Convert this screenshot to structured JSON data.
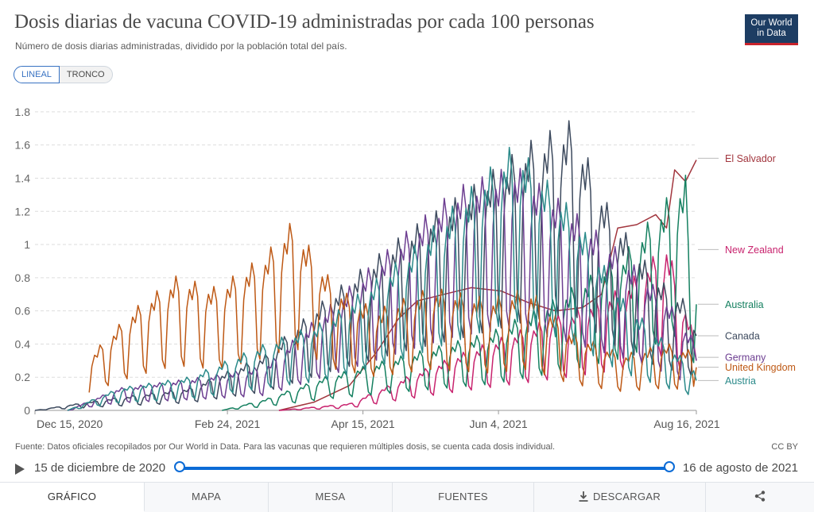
{
  "header": {
    "title": "Dosis diarias de vacuna COVID-19 administradas por cada 100 personas",
    "subtitle": "Número de dosis diarias administradas, dividido por la población total del país.",
    "logo_line1": "Our World",
    "logo_line2": "in Data"
  },
  "scale_toggle": {
    "linear": "LINEAL",
    "log": "TRONCO"
  },
  "footer": {
    "source": "Fuente: Datos oficiales recopilados por Our World in Data. Para las vacunas que requieren múltiples dosis, se cuenta cada dosis individual.",
    "license": "CC BY"
  },
  "timeline": {
    "start": "15 de diciembre de 2020",
    "end": "16 de agosto de 2021"
  },
  "tabs": {
    "chart": "GRÁFICO",
    "map": "MAPA",
    "table": "MESA",
    "sources": "FUENTES",
    "download": "DESCARGAR"
  },
  "chart_data": {
    "type": "line",
    "x_ticks": [
      "Dec 15, 2020",
      "Feb 24, 2021",
      "Apr 15, 2021",
      "Jun 4, 2021",
      "Aug 16, 2021"
    ],
    "y_ticks": [
      "0",
      "0.2",
      "0.4",
      "0.6",
      "0.8",
      "1",
      "1.2",
      "1.4",
      "1.6",
      "1.8"
    ],
    "ylim": [
      0,
      1.9
    ],
    "x_range": [
      "2020-12-15",
      "2021-08-16"
    ],
    "grid": "horizontal-dashed",
    "series": [
      {
        "name": "El Salvador",
        "color": "#a2363e",
        "label_y": 1.52,
        "pattern": "smooth",
        "points": [
          [
            "2021-03-15",
            0.0
          ],
          [
            "2021-03-28",
            0.05
          ],
          [
            "2021-04-10",
            0.15
          ],
          [
            "2021-04-20",
            0.35
          ],
          [
            "2021-04-28",
            0.55
          ],
          [
            "2021-05-05",
            0.66
          ],
          [
            "2021-05-15",
            0.7
          ],
          [
            "2021-05-25",
            0.74
          ],
          [
            "2021-06-05",
            0.72
          ],
          [
            "2021-06-15",
            0.65
          ],
          [
            "2021-06-25",
            0.6
          ],
          [
            "2021-07-05",
            0.62
          ],
          [
            "2021-07-12",
            0.7
          ],
          [
            "2021-07-18",
            1.1
          ],
          [
            "2021-07-25",
            1.12
          ],
          [
            "2021-08-01",
            1.18
          ],
          [
            "2021-08-05",
            1.1
          ],
          [
            "2021-08-08",
            1.45
          ],
          [
            "2021-08-12",
            1.38
          ],
          [
            "2021-08-16",
            1.51
          ]
        ]
      },
      {
        "name": "New Zealand",
        "color": "#c8236e",
        "label_y": 0.97,
        "pattern": "weekly",
        "points": [
          [
            "2021-03-15",
            0.0
          ],
          [
            "2021-04-10",
            0.03
          ],
          [
            "2021-05-01",
            0.15
          ],
          [
            "2021-05-20",
            0.25
          ],
          [
            "2021-06-10",
            0.35
          ],
          [
            "2021-07-01",
            0.45
          ],
          [
            "2021-07-20",
            0.55
          ],
          [
            "2021-08-05",
            0.75
          ],
          [
            "2021-08-16",
            0.3
          ]
        ]
      },
      {
        "name": "Australia",
        "color": "#158060",
        "label_y": 0.64,
        "pattern": "weekly",
        "points": [
          [
            "2021-02-22",
            0.0
          ],
          [
            "2021-03-10",
            0.05
          ],
          [
            "2021-04-01",
            0.15
          ],
          [
            "2021-05-01",
            0.25
          ],
          [
            "2021-06-01",
            0.35
          ],
          [
            "2021-06-25",
            0.5
          ],
          [
            "2021-07-20",
            0.7
          ],
          [
            "2021-08-05",
            0.95
          ],
          [
            "2021-08-12",
            1.05
          ],
          [
            "2021-08-14",
            0.64
          ],
          [
            "2021-08-16",
            0.64
          ]
        ]
      },
      {
        "name": "Canada",
        "color": "#3d4a5e",
        "label_y": 0.45,
        "pattern": "weekly",
        "points": [
          [
            "2020-12-15",
            0.0
          ],
          [
            "2021-01-10",
            0.05
          ],
          [
            "2021-02-10",
            0.1
          ],
          [
            "2021-03-10",
            0.25
          ],
          [
            "2021-04-01",
            0.5
          ],
          [
            "2021-05-01",
            0.8
          ],
          [
            "2021-05-25",
            1.0
          ],
          [
            "2021-06-15",
            1.2
          ],
          [
            "2021-07-01",
            1.3
          ],
          [
            "2021-07-15",
            0.9
          ],
          [
            "2021-08-01",
            0.6
          ],
          [
            "2021-08-16",
            0.45
          ]
        ]
      },
      {
        "name": "Germany",
        "color": "#6d3e91",
        "label_y": 0.32,
        "pattern": "weekly",
        "points": [
          [
            "2020-12-27",
            0.0
          ],
          [
            "2021-01-15",
            0.1
          ],
          [
            "2021-02-15",
            0.15
          ],
          [
            "2021-03-10",
            0.2
          ],
          [
            "2021-04-01",
            0.45
          ],
          [
            "2021-05-01",
            0.8
          ],
          [
            "2021-05-20",
            1.0
          ],
          [
            "2021-06-10",
            1.1
          ],
          [
            "2021-07-01",
            0.9
          ],
          [
            "2021-07-20",
            0.7
          ],
          [
            "2021-08-05",
            0.5
          ],
          [
            "2021-08-16",
            0.3
          ]
        ]
      },
      {
        "name": "United Kingdom",
        "color": "#be5915",
        "label_y": 0.26,
        "pattern": "weekly",
        "points": [
          [
            "2021-01-04",
            0.24
          ],
          [
            "2021-01-20",
            0.45
          ],
          [
            "2021-02-05",
            0.6
          ],
          [
            "2021-02-20",
            0.55
          ],
          [
            "2021-03-10",
            0.7
          ],
          [
            "2021-03-20",
            0.85
          ],
          [
            "2021-04-05",
            0.55
          ],
          [
            "2021-04-20",
            0.45
          ],
          [
            "2021-05-10",
            0.55
          ],
          [
            "2021-06-01",
            0.5
          ],
          [
            "2021-06-15",
            0.55
          ],
          [
            "2021-07-01",
            0.35
          ],
          [
            "2021-07-20",
            0.25
          ],
          [
            "2021-08-05",
            0.3
          ],
          [
            "2021-08-16",
            0.26
          ]
        ]
      },
      {
        "name": "Austria",
        "color": "#2b8a8a",
        "label_y": 0.18,
        "pattern": "weekly",
        "points": [
          [
            "2020-12-27",
            0.0
          ],
          [
            "2021-01-15",
            0.1
          ],
          [
            "2021-02-10",
            0.15
          ],
          [
            "2021-03-10",
            0.3
          ],
          [
            "2021-04-01",
            0.4
          ],
          [
            "2021-05-01",
            0.7
          ],
          [
            "2021-05-25",
            1.0
          ],
          [
            "2021-06-10",
            1.2
          ],
          [
            "2021-07-01",
            0.9
          ],
          [
            "2021-07-20",
            0.5
          ],
          [
            "2021-08-05",
            0.3
          ],
          [
            "2021-08-16",
            0.18
          ]
        ]
      }
    ]
  }
}
